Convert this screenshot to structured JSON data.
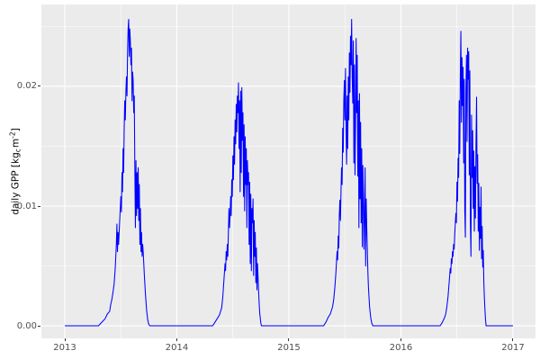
{
  "figure": {
    "background": "#FFFFFF",
    "panel_background": "#EBEBEB"
  },
  "chart_data": {
    "type": "line",
    "title": "",
    "subtitle": "",
    "xlabel": "",
    "ylabel": "daily GPP [kg_c m^-2]",
    "ylabel_parts": {
      "prefix": "daily GPP [kg",
      "sub": "c",
      "mid": "m",
      "sup": "-2",
      "suffix": "]"
    },
    "legend": "none",
    "grid": "major-and-minor-white-on-gray",
    "line_color": "#0000FF",
    "grid_color": "#FFFFFF",
    "tick_label_color": "#4D4D4D",
    "tick_mark_color": "#333333",
    "axis": {
      "x_min": 2012.791,
      "x_max": 2017.201,
      "y_min": -0.00105,
      "y_max": 0.02684,
      "x_major_ticks": [
        2013,
        2014,
        2015,
        2016,
        2017
      ],
      "x_tick_labels": [
        "2013",
        "2014",
        "2015",
        "2016",
        "2017"
      ],
      "x_minor_ticks": [
        2013.5,
        2014.5,
        2015.5,
        2016.5
      ],
      "y_major_ticks": [
        0,
        0.01,
        0.02
      ],
      "y_tick_labels": [
        "0.00",
        "0.01",
        "0.02"
      ],
      "y_minor_ticks": [
        0.005,
        0.015,
        0.025
      ]
    },
    "series": [
      {
        "name": "daily GPP",
        "color": "#0000FF",
        "points": [
          [
            2013.0,
            0
          ],
          [
            2013.3,
            0
          ],
          [
            2013.32,
            0.0002
          ],
          [
            2013.34,
            0.0004
          ],
          [
            2013.36,
            0.0006
          ],
          [
            2013.38,
            0.001
          ],
          [
            2013.4,
            0.0012
          ],
          [
            2013.41,
            0.0018
          ],
          [
            2013.42,
            0.0022
          ],
          [
            2013.43,
            0.0028
          ],
          [
            2013.44,
            0.0035
          ],
          [
            2013.45,
            0.0048
          ],
          [
            2013.46,
            0.0068
          ],
          [
            2013.465,
            0.0085
          ],
          [
            2013.47,
            0.0062
          ],
          [
            2013.475,
            0.0078
          ],
          [
            2013.48,
            0.0068
          ],
          [
            2013.49,
            0.0088
          ],
          [
            2013.5,
            0.0108
          ],
          [
            2013.505,
            0.0095
          ],
          [
            2013.51,
            0.0128
          ],
          [
            2013.515,
            0.0112
          ],
          [
            2013.52,
            0.0148
          ],
          [
            2013.525,
            0.0128
          ],
          [
            2013.53,
            0.0165
          ],
          [
            2013.535,
            0.0188
          ],
          [
            2013.54,
            0.0172
          ],
          [
            2013.545,
            0.0195
          ],
          [
            2013.55,
            0.0208
          ],
          [
            2013.555,
            0.0192
          ],
          [
            2013.56,
            0.0228
          ],
          [
            2013.565,
            0.0248
          ],
          [
            2013.57,
            0.0256
          ],
          [
            2013.575,
            0.0225
          ],
          [
            2013.58,
            0.0248
          ],
          [
            2013.585,
            0.0238
          ],
          [
            2013.59,
            0.0218
          ],
          [
            2013.595,
            0.0232
          ],
          [
            2013.6,
            0.0188
          ],
          [
            2013.605,
            0.0212
          ],
          [
            2013.61,
            0.0205
          ],
          [
            2013.615,
            0.0178
          ],
          [
            2013.62,
            0.0192
          ],
          [
            2013.625,
            0.0132
          ],
          [
            2013.63,
            0.0082
          ],
          [
            2013.635,
            0.0138
          ],
          [
            2013.64,
            0.0092
          ],
          [
            2013.645,
            0.0128
          ],
          [
            2013.65,
            0.0098
          ],
          [
            2013.655,
            0.0132
          ],
          [
            2013.66,
            0.0088
          ],
          [
            2013.665,
            0.0118
          ],
          [
            2013.67,
            0.0068
          ],
          [
            2013.675,
            0.0098
          ],
          [
            2013.68,
            0.0062
          ],
          [
            2013.685,
            0.0078
          ],
          [
            2013.69,
            0.0058
          ],
          [
            2013.695,
            0.0068
          ],
          [
            2013.7,
            0.0061
          ],
          [
            2013.71,
            0.0042
          ],
          [
            2013.72,
            0.0026
          ],
          [
            2013.73,
            0.0013
          ],
          [
            2013.74,
            0.0005
          ],
          [
            2013.75,
            0.0001
          ],
          [
            2013.76,
            0
          ],
          [
            2014.32,
            0
          ],
          [
            2014.34,
            0.0003
          ],
          [
            2014.36,
            0.0006
          ],
          [
            2014.38,
            0.0009
          ],
          [
            2014.4,
            0.0015
          ],
          [
            2014.41,
            0.0024
          ],
          [
            2014.42,
            0.0038
          ],
          [
            2014.43,
            0.0052
          ],
          [
            2014.435,
            0.0046
          ],
          [
            2014.44,
            0.0062
          ],
          [
            2014.445,
            0.0055
          ],
          [
            2014.45,
            0.0068
          ],
          [
            2014.455,
            0.0058
          ],
          [
            2014.46,
            0.0078
          ],
          [
            2014.465,
            0.0098
          ],
          [
            2014.47,
            0.0082
          ],
          [
            2014.475,
            0.0092
          ],
          [
            2014.48,
            0.0108
          ],
          [
            2014.485,
            0.0092
          ],
          [
            2014.49,
            0.0122
          ],
          [
            2014.495,
            0.0108
          ],
          [
            2014.5,
            0.0142
          ],
          [
            2014.505,
            0.0122
          ],
          [
            2014.51,
            0.0158
          ],
          [
            2014.515,
            0.0135
          ],
          [
            2014.52,
            0.0172
          ],
          [
            2014.525,
            0.0152
          ],
          [
            2014.53,
            0.0185
          ],
          [
            2014.535,
            0.0162
          ],
          [
            2014.54,
            0.0192
          ],
          [
            2014.545,
            0.0178
          ],
          [
            2014.55,
            0.0203
          ],
          [
            2014.555,
            0.0148
          ],
          [
            2014.56,
            0.0188
          ],
          [
            2014.565,
            0.0112
          ],
          [
            2014.57,
            0.0196
          ],
          [
            2014.575,
            0.0128
          ],
          [
            2014.58,
            0.0199
          ],
          [
            2014.585,
            0.0155
          ],
          [
            2014.59,
            0.0178
          ],
          [
            2014.595,
            0.0108
          ],
          [
            2014.6,
            0.0168
          ],
          [
            2014.605,
            0.0096
          ],
          [
            2014.61,
            0.0158
          ],
          [
            2014.615,
            0.0118
          ],
          [
            2014.62,
            0.0148
          ],
          [
            2014.625,
            0.0082
          ],
          [
            2014.63,
            0.0138
          ],
          [
            2014.635,
            0.0118
          ],
          [
            2014.64,
            0.0128
          ],
          [
            2014.645,
            0.0068
          ],
          [
            2014.65,
            0.012
          ],
          [
            2014.655,
            0.0052
          ],
          [
            2014.66,
            0.011
          ],
          [
            2014.665,
            0.0046
          ],
          [
            2014.67,
            0.0098
          ],
          [
            2014.675,
            0.0086
          ],
          [
            2014.68,
            0.0106
          ],
          [
            2014.685,
            0.0042
          ],
          [
            2014.69,
            0.0088
          ],
          [
            2014.695,
            0.0058
          ],
          [
            2014.7,
            0.0078
          ],
          [
            2014.705,
            0.0036
          ],
          [
            2014.71,
            0.0065
          ],
          [
            2014.715,
            0.003
          ],
          [
            2014.72,
            0.0052
          ],
          [
            2014.725,
            0.004
          ],
          [
            2014.73,
            0.0028
          ],
          [
            2014.735,
            0.0018
          ],
          [
            2014.74,
            0.001
          ],
          [
            2014.75,
            0.0002
          ],
          [
            2014.755,
            0
          ],
          [
            2015.31,
            0
          ],
          [
            2015.33,
            0.0003
          ],
          [
            2015.35,
            0.0007
          ],
          [
            2015.37,
            0.001
          ],
          [
            2015.39,
            0.0016
          ],
          [
            2015.4,
            0.0022
          ],
          [
            2015.41,
            0.0032
          ],
          [
            2015.42,
            0.0045
          ],
          [
            2015.43,
            0.0062
          ],
          [
            2015.435,
            0.0055
          ],
          [
            2015.44,
            0.0075
          ],
          [
            2015.445,
            0.0065
          ],
          [
            2015.45,
            0.0092
          ],
          [
            2015.455,
            0.0105
          ],
          [
            2015.46,
            0.0088
          ],
          [
            2015.465,
            0.0112
          ],
          [
            2015.47,
            0.0132
          ],
          [
            2015.475,
            0.0118
          ],
          [
            2015.48,
            0.0165
          ],
          [
            2015.485,
            0.0145
          ],
          [
            2015.49,
            0.0188
          ],
          [
            2015.495,
            0.0205
          ],
          [
            2015.5,
            0.0172
          ],
          [
            2015.505,
            0.0215
          ],
          [
            2015.51,
            0.0162
          ],
          [
            2015.515,
            0.0135
          ],
          [
            2015.52,
            0.0192
          ],
          [
            2015.525,
            0.0148
          ],
          [
            2015.53,
            0.0208
          ],
          [
            2015.535,
            0.0172
          ],
          [
            2015.54,
            0.0228
          ],
          [
            2015.545,
            0.0195
          ],
          [
            2015.55,
            0.0242
          ],
          [
            2015.555,
            0.0218
          ],
          [
            2015.56,
            0.0256
          ],
          [
            2015.565,
            0.0208
          ],
          [
            2015.57,
            0.0186
          ],
          [
            2015.575,
            0.0238
          ],
          [
            2015.58,
            0.0136
          ],
          [
            2015.585,
            0.0218
          ],
          [
            2015.59,
            0.0126
          ],
          [
            2015.595,
            0.0168
          ],
          [
            2015.6,
            0.024
          ],
          [
            2015.605,
            0.0178
          ],
          [
            2015.61,
            0.0226
          ],
          [
            2015.615,
            0.0125
          ],
          [
            2015.62,
            0.0188
          ],
          [
            2015.625,
            0.0082
          ],
          [
            2015.63,
            0.0194
          ],
          [
            2015.635,
            0.0106
          ],
          [
            2015.64,
            0.017
          ],
          [
            2015.645,
            0.0086
          ],
          [
            2015.65,
            0.0148
          ],
          [
            2015.655,
            0.0066
          ],
          [
            2015.66,
            0.0134
          ],
          [
            2015.665,
            0.0108
          ],
          [
            2015.67,
            0.0064
          ],
          [
            2015.675,
            0.0092
          ],
          [
            2015.68,
            0.0132
          ],
          [
            2015.685,
            0.005
          ],
          [
            2015.69,
            0.0106
          ],
          [
            2015.695,
            0.0082
          ],
          [
            2015.7,
            0.0064
          ],
          [
            2015.705,
            0.0045
          ],
          [
            2015.71,
            0.0032
          ],
          [
            2015.72,
            0.0016
          ],
          [
            2015.73,
            0.0007
          ],
          [
            2015.74,
            0.0002
          ],
          [
            2015.75,
            0
          ],
          [
            2016.35,
            0
          ],
          [
            2016.37,
            0.0003
          ],
          [
            2016.39,
            0.0007
          ],
          [
            2016.4,
            0.001
          ],
          [
            2016.41,
            0.0016
          ],
          [
            2016.42,
            0.0024
          ],
          [
            2016.43,
            0.0036
          ],
          [
            2016.44,
            0.0048
          ],
          [
            2016.445,
            0.0044
          ],
          [
            2016.45,
            0.0056
          ],
          [
            2016.455,
            0.0052
          ],
          [
            2016.46,
            0.0062
          ],
          [
            2016.465,
            0.0058
          ],
          [
            2016.47,
            0.0068
          ],
          [
            2016.475,
            0.0064
          ],
          [
            2016.48,
            0.0076
          ],
          [
            2016.49,
            0.0094
          ],
          [
            2016.495,
            0.0086
          ],
          [
            2016.5,
            0.012
          ],
          [
            2016.505,
            0.0104
          ],
          [
            2016.51,
            0.014
          ],
          [
            2016.515,
            0.0124
          ],
          [
            2016.52,
            0.0188
          ],
          [
            2016.525,
            0.0144
          ],
          [
            2016.53,
            0.021
          ],
          [
            2016.535,
            0.0246
          ],
          [
            2016.54,
            0.017
          ],
          [
            2016.545,
            0.0224
          ],
          [
            2016.55,
            0.0184
          ],
          [
            2016.555,
            0.0216
          ],
          [
            2016.56,
            0.0136
          ],
          [
            2016.565,
            0.0206
          ],
          [
            2016.57,
            0.0096
          ],
          [
            2016.575,
            0.0074
          ],
          [
            2016.58,
            0.0196
          ],
          [
            2016.585,
            0.0226
          ],
          [
            2016.59,
            0.0154
          ],
          [
            2016.595,
            0.0232
          ],
          [
            2016.6,
            0.0206
          ],
          [
            2016.605,
            0.0229
          ],
          [
            2016.61,
            0.0126
          ],
          [
            2016.615,
            0.0213
          ],
          [
            2016.62,
            0.0086
          ],
          [
            2016.625,
            0.0058
          ],
          [
            2016.63,
            0.0176
          ],
          [
            2016.635,
            0.0124
          ],
          [
            2016.64,
            0.0163
          ],
          [
            2016.645,
            0.0098
          ],
          [
            2016.65,
            0.0146
          ],
          [
            2016.655,
            0.0079
          ],
          [
            2016.66,
            0.0133
          ],
          [
            2016.665,
            0.009
          ],
          [
            2016.67,
            0.0153
          ],
          [
            2016.675,
            0.0191
          ],
          [
            2016.68,
            0.0119
          ],
          [
            2016.685,
            0.0143
          ],
          [
            2016.69,
            0.0079
          ],
          [
            2016.695,
            0.0119
          ],
          [
            2016.7,
            0.0063
          ],
          [
            2016.705,
            0.0099
          ],
          [
            2016.71,
            0.0073
          ],
          [
            2016.715,
            0.0116
          ],
          [
            2016.72,
            0.0056
          ],
          [
            2016.725,
            0.0083
          ],
          [
            2016.73,
            0.0049
          ],
          [
            2016.735,
            0.0063
          ],
          [
            2016.74,
            0.0036
          ],
          [
            2016.745,
            0.0023
          ],
          [
            2016.75,
            0.0013
          ],
          [
            2016.755,
            0.0005
          ],
          [
            2016.76,
            0
          ],
          [
            2017.0,
            0
          ]
        ]
      }
    ]
  }
}
